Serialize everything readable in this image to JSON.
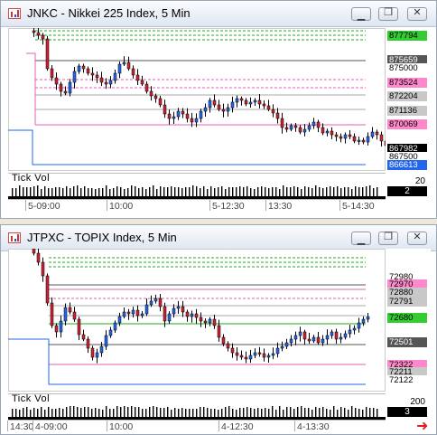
{
  "windows": [
    {
      "title": "JNKC - Nikkei 225 Index, 5 Min",
      "price_labels": [
        {
          "text": "877794",
          "bg": "#33cc33",
          "color": "#000"
        },
        {
          "text": "875659",
          "bg": "#555555",
          "color": "#fff"
        },
        {
          "text": "875000",
          "bg": "#ffffff",
          "color": "#000"
        },
        {
          "text": "873524",
          "bg": "#ff88cc",
          "color": "#000"
        },
        {
          "text": "872204",
          "bg": "#c8c8c8",
          "color": "#000"
        },
        {
          "text": "871136",
          "bg": "#c8c8c8",
          "color": "#000"
        },
        {
          "text": "870069",
          "bg": "#ff88cc",
          "color": "#000"
        },
        {
          "text": "867982",
          "bg": "#000000",
          "color": "#fff"
        },
        {
          "text": "867500",
          "bg": "#ffffff",
          "color": "#000"
        },
        {
          "text": "866613",
          "bg": "#2266ee",
          "color": "#fff"
        }
      ],
      "volume": {
        "title": "Tick Vol",
        "axis_top": "20",
        "last": "2"
      },
      "time_labels": [
        "5-09:00",
        "10:00",
        "5-12:30",
        "13:30",
        "5-14:30"
      ]
    },
    {
      "title": "JTPXC - TOPIX Index, 5 Min",
      "price_labels": [
        {
          "text": "72980",
          "bg": "#ffffff",
          "color": "#000"
        },
        {
          "text": "72970",
          "bg": "#ff88cc",
          "color": "#000"
        },
        {
          "text": "72880",
          "bg": "#c8c8c8",
          "color": "#000"
        },
        {
          "text": "72791",
          "bg": "#c8c8c8",
          "color": "#000"
        },
        {
          "text": "72680",
          "bg": "#33cc33",
          "color": "#000"
        },
        {
          "text": "72501",
          "bg": "#555555",
          "color": "#fff"
        },
        {
          "text": "72322",
          "bg": "#ff88cc",
          "color": "#000"
        },
        {
          "text": "72211",
          "bg": "#c8c8c8",
          "color": "#000"
        },
        {
          "text": "72122",
          "bg": "#ffffff",
          "color": "#000"
        }
      ],
      "volume": {
        "title": "Tick Vol",
        "axis_top": "200",
        "last": "3"
      },
      "time_labels": [
        "14:30",
        "4-09:00",
        "10:00",
        "4-12:30",
        "4-13:30"
      ]
    }
  ],
  "buttons": {
    "minimize": "▁",
    "restore": "❐",
    "close": "✕"
  },
  "scroll_arrow": "➜",
  "colors": {
    "up": "#2266ee",
    "down": "#cc2233",
    "pink": "#e060b0",
    "green": "#22aa22",
    "blue": "#2266ee"
  }
}
